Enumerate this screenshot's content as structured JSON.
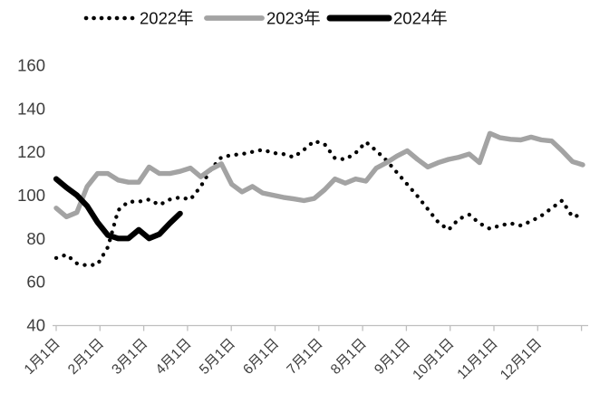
{
  "chart_data": {
    "type": "line",
    "title": "",
    "legend_position": "top",
    "grid": false,
    "ylim": [
      40,
      160
    ],
    "y_ticks": [
      160,
      140,
      120,
      100,
      80,
      60,
      40
    ],
    "x_tick_labels": [
      "1月1日",
      "2月1日",
      "3月1日",
      "4月1日",
      "5月1日",
      "6月1日",
      "7月1日",
      "8月1日",
      "9月1日",
      "10月1日",
      "11月1日",
      "12月1日"
    ],
    "x_resolution": "weekly, 52 points per full year",
    "series": [
      {
        "name": "2022年",
        "style": "dotted",
        "color": "#000000",
        "stroke_width": 4.3,
        "values": [
          71,
          72.5,
          68.5,
          67.5,
          68,
          76,
          93,
          97,
          97,
          98,
          95.5,
          98,
          99,
          98,
          104,
          112,
          117.5,
          118.5,
          119,
          120,
          121,
          119.5,
          119,
          117.5,
          121,
          125,
          123.5,
          117,
          116.5,
          119.5,
          124.5,
          120.5,
          116,
          110.5,
          105,
          99.5,
          93.5,
          87.5,
          84,
          89,
          91,
          87,
          84.5,
          86,
          87,
          86,
          88,
          90.5,
          94,
          97.5,
          90,
          91
        ]
      },
      {
        "name": "2023年",
        "style": "solid",
        "color": "#a3a3a3",
        "stroke_width": 5.4,
        "values": [
          94,
          90,
          92,
          104,
          110,
          110,
          107,
          106,
          106,
          113,
          110,
          110,
          111,
          112.5,
          108.5,
          112,
          114.5,
          105,
          101.5,
          104,
          101,
          100,
          99,
          98.3,
          97.5,
          98.5,
          102.5,
          107.5,
          105.5,
          107.5,
          106.5,
          112.5,
          115,
          118,
          120.5,
          116.5,
          113,
          115,
          116.5,
          117.5,
          119,
          115,
          128.5,
          126.5,
          125.8,
          125.5,
          126.8,
          125.5,
          125,
          120.5,
          115.5,
          114
        ]
      },
      {
        "name": "2024年",
        "style": "solid",
        "color": "#000000",
        "stroke_width": 6.2,
        "values": [
          107.5,
          103.5,
          100,
          95,
          87.5,
          81.5,
          80,
          80,
          84,
          80,
          82,
          87,
          91.5
        ]
      }
    ]
  },
  "colors": {
    "background": "#ffffff",
    "axis_line": "#bfbfbf",
    "tick_label_text": "#3d3d3d",
    "legend_text": "#111111"
  }
}
